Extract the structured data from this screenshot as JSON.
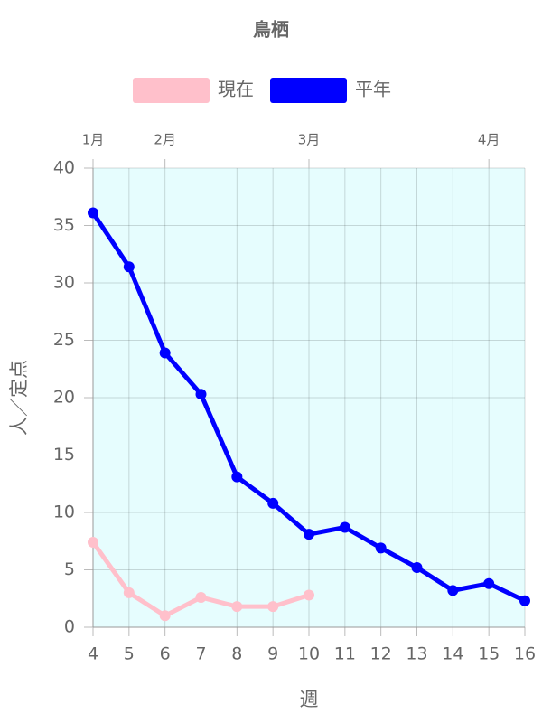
{
  "chart_data": {
    "type": "line",
    "title": "鳥栖",
    "x_label": "週",
    "y_label": "人／定点",
    "x": [
      4,
      5,
      6,
      7,
      8,
      9,
      10,
      11,
      12,
      13,
      14,
      15,
      16
    ],
    "series": [
      {
        "name": "現在",
        "color": "#ffc0cb",
        "values": [
          7.4,
          3.0,
          1.0,
          2.6,
          1.8,
          1.8,
          2.8,
          null,
          null,
          null,
          null,
          null,
          null
        ]
      },
      {
        "name": "平年",
        "color": "#0000ff",
        "values": [
          36.1,
          31.4,
          23.9,
          20.3,
          13.1,
          10.8,
          8.1,
          8.7,
          6.9,
          5.2,
          3.2,
          3.8,
          2.3
        ]
      }
    ],
    "xlim": [
      4,
      16
    ],
    "xticks": [
      4,
      5,
      6,
      7,
      8,
      9,
      10,
      11,
      12,
      13,
      14,
      15,
      16
    ],
    "ylim": [
      0,
      40
    ],
    "yticks": [
      0,
      5,
      10,
      15,
      20,
      25,
      30,
      35,
      40
    ],
    "x2ticks": [
      {
        "value": 4,
        "label": "1月"
      },
      {
        "value": 6,
        "label": "2月"
      },
      {
        "value": 10,
        "label": "3月"
      },
      {
        "value": 15,
        "label": "4月"
      }
    ],
    "grid": true,
    "legend": "top",
    "plot_background": "#e6fdfe"
  }
}
